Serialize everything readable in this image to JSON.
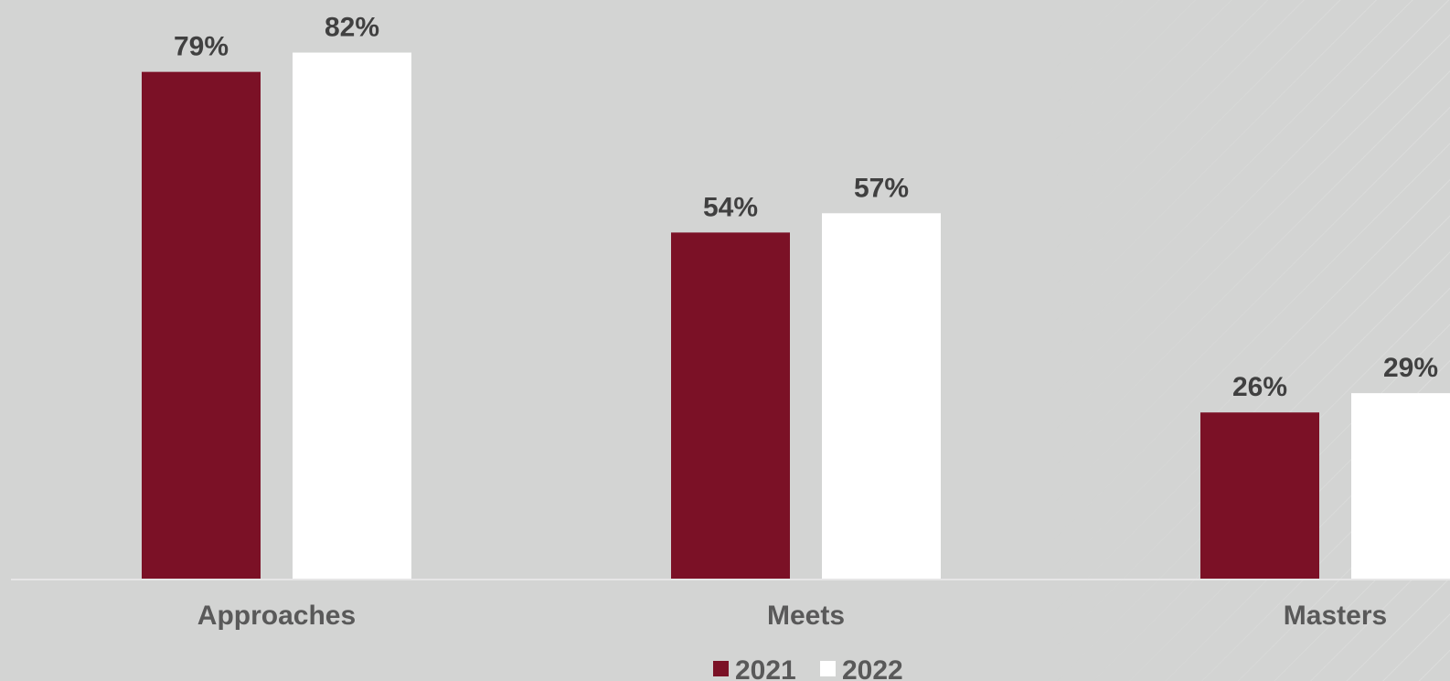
{
  "chart_data": {
    "type": "bar",
    "title": "",
    "xlabel": "",
    "ylabel": "",
    "categories": [
      "Approaches",
      "Meets",
      "Masters"
    ],
    "series": [
      {
        "name": "2021",
        "values": [
          79,
          54,
          26
        ],
        "labels": [
          "79%",
          "54%",
          "26%"
        ],
        "color": "#7b1126"
      },
      {
        "name": "2022",
        "values": [
          82,
          57,
          29
        ],
        "labels": [
          "82%",
          "57%",
          "29%"
        ],
        "color": "#ffffff"
      }
    ],
    "ylim": [
      0,
      85
    ],
    "grid": false,
    "legend_position": "bottom"
  },
  "colors": {
    "background": "#d3d4d3",
    "baseline": "#e6e6e6",
    "label_text": "#404040",
    "axis_text": "#595959"
  }
}
